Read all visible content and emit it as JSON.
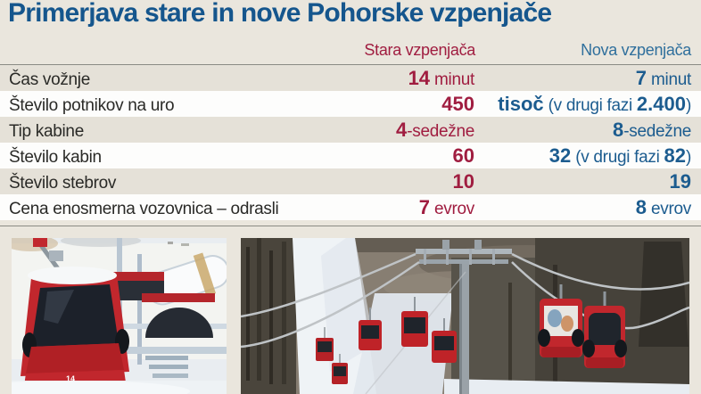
{
  "page": {
    "title": "Primerjava stare in nove Pohorske vzpenjače"
  },
  "table": {
    "columns": {
      "old": "Stara vzpenjača",
      "new": "Nova vzpenjača"
    },
    "rows": [
      {
        "label": "Čas vožnje",
        "old": [
          {
            "text": "14",
            "bold": true
          },
          {
            "text": " minut",
            "bold": false
          }
        ],
        "new": [
          {
            "text": "7",
            "bold": true
          },
          {
            "text": " minut",
            "bold": false
          }
        ]
      },
      {
        "label": "Število potnikov na uro",
        "old": [
          {
            "text": "450",
            "bold": true
          }
        ],
        "new": [
          {
            "text": "tisoč",
            "bold": true
          },
          {
            "text": " (v drugi fazi ",
            "bold": false
          },
          {
            "text": "2.400",
            "bold": true
          },
          {
            "text": ")",
            "bold": false
          }
        ]
      },
      {
        "label": "Tip kabine",
        "old": [
          {
            "text": "4",
            "bold": true
          },
          {
            "text": "-sedežne",
            "bold": false
          }
        ],
        "new": [
          {
            "text": "8",
            "bold": true
          },
          {
            "text": "-sedežne",
            "bold": false
          }
        ]
      },
      {
        "label": "Število kabin",
        "old": [
          {
            "text": "60",
            "bold": true
          }
        ],
        "new": [
          {
            "text": "32",
            "bold": true
          },
          {
            "text": " (v drugi fazi ",
            "bold": false
          },
          {
            "text": "82",
            "bold": true
          },
          {
            "text": ")",
            "bold": false
          }
        ]
      },
      {
        "label": "Število stebrov",
        "old": [
          {
            "text": "10",
            "bold": true
          }
        ],
        "new": [
          {
            "text": "19",
            "bold": true
          }
        ]
      },
      {
        "label": "Cena enosmerna vozovnica – odrasli",
        "old": [
          {
            "text": "7",
            "bold": true
          },
          {
            "text": " evrov",
            "bold": false
          }
        ],
        "new": [
          {
            "text": "8",
            "bold": true
          },
          {
            "text": " evrov",
            "bold": false
          }
        ]
      }
    ]
  },
  "photos": {
    "left": {
      "cabin_number": "14"
    }
  },
  "colors": {
    "page_bg": "#eae6dd",
    "title": "#15568d",
    "old_accent": "#a01d40",
    "new_accent": "#1c5c8f",
    "new_header": "#2f6f9c",
    "row_alt": "#e5e1d8",
    "row_white": "#fdfdfc",
    "divider": "#8b8b84"
  }
}
